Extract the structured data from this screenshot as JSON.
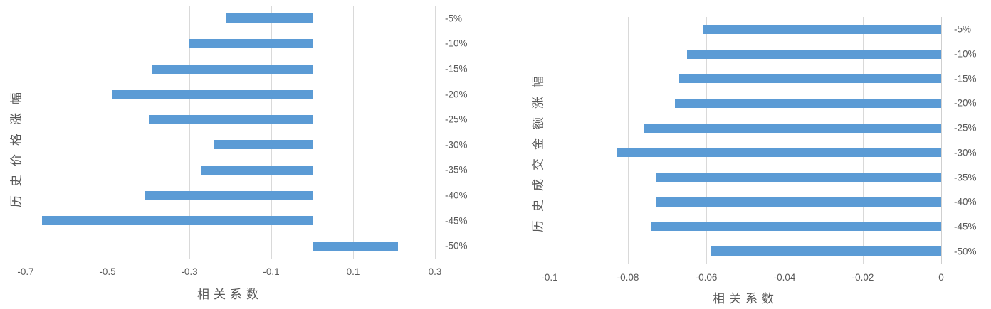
{
  "background": "#ffffff",
  "colors": {
    "bar": "#5b9bd5",
    "gridline": "#d9d9d9",
    "zero_axis": "#cfcfcf",
    "tick_text": "#595959",
    "title_text": "#595959"
  },
  "chart_data": [
    {
      "type": "bar",
      "orientation": "horizontal",
      "title": "",
      "ylabel": "历史价格涨幅",
      "xlabel": "相关系数",
      "categories": [
        "-5%",
        "-10%",
        "-15%",
        "-20%",
        "-25%",
        "-30%",
        "-35%",
        "-40%",
        "-45%",
        "-50%"
      ],
      "values": [
        -0.21,
        -0.3,
        -0.39,
        -0.49,
        -0.4,
        -0.24,
        -0.27,
        -0.41,
        -0.66,
        0.21
      ],
      "xlim": [
        -0.7,
        0.3
      ],
      "xticks": [
        -0.7,
        -0.5,
        -0.3,
        -0.1,
        0.1,
        0.3
      ],
      "xtick_labels": [
        "-0.7",
        "-0.5",
        "-0.3",
        "-0.1",
        "0.1",
        "0.3"
      ],
      "grid": true,
      "legend": false,
      "category_label_side": "right"
    },
    {
      "type": "bar",
      "orientation": "horizontal",
      "title": "",
      "ylabel": "历史成交金额涨幅",
      "xlabel": "相关系数",
      "categories": [
        "-5%",
        "-10%",
        "-15%",
        "-20%",
        "-25%",
        "-30%",
        "-35%",
        "-40%",
        "-45%",
        "-50%"
      ],
      "values": [
        -0.061,
        -0.065,
        -0.067,
        -0.068,
        -0.076,
        -0.083,
        -0.073,
        -0.073,
        -0.074,
        -0.059
      ],
      "xlim": [
        -0.1,
        0
      ],
      "xticks": [
        -0.1,
        -0.08,
        -0.06,
        -0.04,
        -0.02,
        0
      ],
      "xtick_labels": [
        "-0.1",
        "-0.08",
        "-0.06",
        "-0.04",
        "-0.02",
        "0"
      ],
      "grid": true,
      "legend": false,
      "category_label_side": "right"
    }
  ]
}
